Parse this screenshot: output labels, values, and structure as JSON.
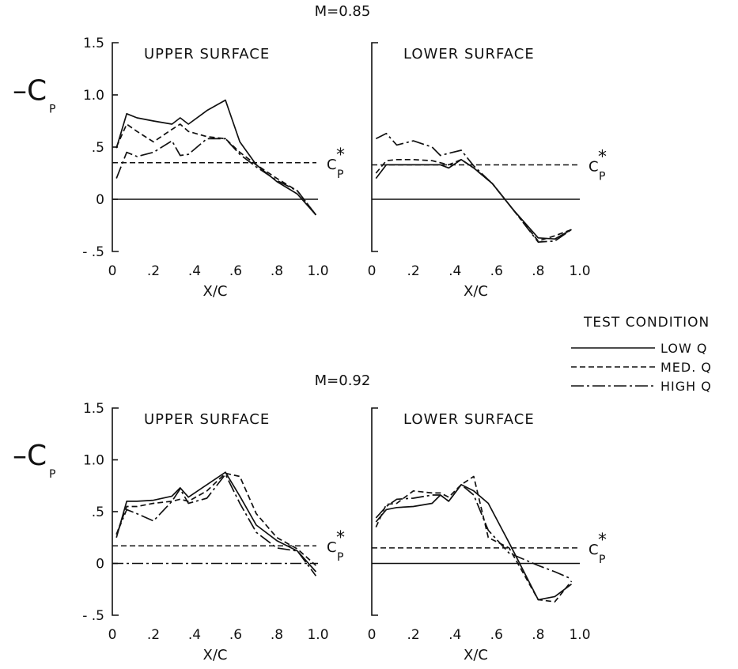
{
  "legend": {
    "title": "TEST CONDITION",
    "items": [
      {
        "label": "LOW  Q",
        "dash": ""
      },
      {
        "label": "MED.  Q",
        "dash": "7,4"
      },
      {
        "label": "HIGH  Q",
        "dash": "16,4,3,4"
      }
    ]
  },
  "labels": {
    "ylabel_main": "-C",
    "ylabel_sub": "P",
    "cpstar_main": "C",
    "cpstar_sub": "P",
    "cpstar_star": "*",
    "xlabel": "X/C"
  },
  "chart_data": [
    {
      "type": "line",
      "title": "M=0.85",
      "subtitle": "UPPER SURFACE",
      "xlabel": "X/C",
      "ylabel": "-C_P",
      "xlim": [
        0,
        1.0
      ],
      "ylim": [
        -0.5,
        1.5
      ],
      "xticks": [
        "0",
        ".2",
        ".4",
        ".6",
        ".8",
        "1.0"
      ],
      "yticks": [
        "1.5",
        "1.0",
        ".5",
        "0",
        "- .5"
      ],
      "cp_star": 0.35,
      "zero_line_style": "solid",
      "series": [
        {
          "name": "LOW Q",
          "x": [
            0.02,
            0.07,
            0.12,
            0.2,
            0.29,
            0.33,
            0.37,
            0.46,
            0.55,
            0.62,
            0.7,
            0.8,
            0.9,
            0.99
          ],
          "y": [
            0.49,
            0.82,
            0.78,
            0.75,
            0.72,
            0.78,
            0.72,
            0.85,
            0.95,
            0.55,
            0.33,
            0.17,
            0.05,
            -0.15
          ]
        },
        {
          "name": "MED. Q",
          "x": [
            0.02,
            0.07,
            0.12,
            0.2,
            0.29,
            0.33,
            0.37,
            0.46,
            0.55,
            0.62,
            0.7,
            0.8,
            0.9,
            0.99
          ],
          "y": [
            0.5,
            0.72,
            0.65,
            0.55,
            0.67,
            0.72,
            0.65,
            0.6,
            0.58,
            0.45,
            0.33,
            0.2,
            0.08,
            -0.15
          ]
        },
        {
          "name": "HIGH Q",
          "x": [
            0.02,
            0.07,
            0.12,
            0.2,
            0.29,
            0.33,
            0.37,
            0.46,
            0.55,
            0.62,
            0.7,
            0.8,
            0.9,
            0.99
          ],
          "y": [
            0.2,
            0.45,
            0.41,
            0.45,
            0.56,
            0.42,
            0.43,
            0.58,
            0.58,
            0.43,
            0.31,
            0.18,
            0.08,
            -0.15
          ]
        }
      ]
    },
    {
      "type": "line",
      "title": "",
      "subtitle": "LOWER SURFACE",
      "xlabel": "X/C",
      "ylabel": "",
      "xlim": [
        0,
        1.0
      ],
      "ylim": [
        -0.5,
        1.5
      ],
      "xticks": [
        "0",
        ".2",
        ".4",
        ".6",
        ".8",
        "1.0"
      ],
      "yticks": [],
      "cp_star": 0.33,
      "zero_line_style": "solid",
      "series": [
        {
          "name": "LOW Q",
          "x": [
            0.02,
            0.07,
            0.12,
            0.2,
            0.29,
            0.33,
            0.37,
            0.43,
            0.49,
            0.58,
            0.68,
            0.8,
            0.88,
            0.96
          ],
          "y": [
            0.2,
            0.33,
            0.33,
            0.33,
            0.33,
            0.33,
            0.3,
            0.38,
            0.3,
            0.15,
            -0.1,
            -0.37,
            -0.38,
            -0.29
          ]
        },
        {
          "name": "MED. Q",
          "x": [
            0.02,
            0.07,
            0.12,
            0.2,
            0.29,
            0.33,
            0.37,
            0.43,
            0.49,
            0.58,
            0.68,
            0.8,
            0.88,
            0.96
          ],
          "y": [
            0.25,
            0.37,
            0.38,
            0.38,
            0.37,
            0.35,
            0.33,
            0.38,
            0.3,
            0.15,
            -0.1,
            -0.4,
            -0.35,
            -0.29
          ]
        },
        {
          "name": "HIGH Q",
          "x": [
            0.02,
            0.07,
            0.12,
            0.2,
            0.29,
            0.33,
            0.37,
            0.43,
            0.49,
            0.58,
            0.68,
            0.8,
            0.88,
            0.96
          ],
          "y": [
            0.58,
            0.63,
            0.52,
            0.56,
            0.5,
            0.42,
            0.44,
            0.47,
            0.32,
            0.15,
            -0.1,
            -0.41,
            -0.4,
            -0.29
          ]
        }
      ]
    },
    {
      "type": "line",
      "title": "M=0.92",
      "subtitle": "UPPER SURFACE",
      "xlabel": "X/C",
      "ylabel": "-C_P",
      "xlim": [
        0,
        1.0
      ],
      "ylim": [
        -0.5,
        1.5
      ],
      "xticks": [
        "0",
        ".2",
        ".4",
        ".6",
        ".8",
        "1.0"
      ],
      "yticks": [
        "1.5",
        "1.0",
        ".5",
        "0",
        "- .5"
      ],
      "cp_star": 0.17,
      "zero_line_style": "dashdot",
      "series": [
        {
          "name": "LOW Q",
          "x": [
            0.02,
            0.07,
            0.12,
            0.2,
            0.29,
            0.33,
            0.37,
            0.46,
            0.55,
            0.62,
            0.7,
            0.8,
            0.9,
            0.99
          ],
          "y": [
            0.25,
            0.6,
            0.6,
            0.61,
            0.65,
            0.73,
            0.64,
            0.76,
            0.88,
            0.65,
            0.37,
            0.22,
            0.12,
            -0.08
          ]
        },
        {
          "name": "MED. Q",
          "x": [
            0.02,
            0.07,
            0.12,
            0.2,
            0.29,
            0.33,
            0.37,
            0.46,
            0.55,
            0.62,
            0.7,
            0.8,
            0.9,
            0.99
          ],
          "y": [
            0.28,
            0.55,
            0.55,
            0.58,
            0.6,
            0.62,
            0.6,
            0.7,
            0.87,
            0.84,
            0.48,
            0.25,
            0.14,
            -0.02
          ]
        },
        {
          "name": "HIGH Q",
          "x": [
            0.02,
            0.07,
            0.12,
            0.2,
            0.29,
            0.33,
            0.37,
            0.46,
            0.55,
            0.62,
            0.7,
            0.8,
            0.9,
            0.99
          ],
          "y": [
            0.28,
            0.52,
            0.48,
            0.41,
            0.6,
            0.72,
            0.58,
            0.63,
            0.86,
            0.58,
            0.3,
            0.15,
            0.12,
            -0.12
          ]
        }
      ]
    },
    {
      "type": "line",
      "title": "",
      "subtitle": "LOWER SURFACE",
      "xlabel": "X/C",
      "ylabel": "",
      "xlim": [
        0,
        1.0
      ],
      "ylim": [
        -0.5,
        1.5
      ],
      "xticks": [
        "0",
        ".2",
        ".4",
        ".6",
        ".8",
        "1.0"
      ],
      "yticks": [],
      "cp_star": 0.15,
      "zero_line_style": "solid",
      "series": [
        {
          "name": "LOW Q",
          "x": [
            0.02,
            0.07,
            0.12,
            0.2,
            0.29,
            0.33,
            0.37,
            0.43,
            0.49,
            0.56,
            0.66,
            0.8,
            0.88,
            0.96
          ],
          "y": [
            0.4,
            0.52,
            0.54,
            0.55,
            0.58,
            0.66,
            0.6,
            0.76,
            0.7,
            0.58,
            0.2,
            -0.35,
            -0.32,
            -0.2
          ]
        },
        {
          "name": "MED. Q",
          "x": [
            0.02,
            0.07,
            0.12,
            0.2,
            0.29,
            0.33,
            0.37,
            0.43,
            0.49,
            0.56,
            0.66,
            0.8,
            0.88,
            0.96
          ],
          "y": [
            0.35,
            0.57,
            0.58,
            0.7,
            0.68,
            0.68,
            0.64,
            0.76,
            0.84,
            0.25,
            0.15,
            -0.35,
            -0.37,
            -0.17
          ]
        },
        {
          "name": "HIGH Q",
          "x": [
            0.02,
            0.07,
            0.12,
            0.2,
            0.29,
            0.33,
            0.37,
            0.43,
            0.49,
            0.56,
            0.66,
            0.8,
            0.88,
            0.96
          ],
          "y": [
            0.44,
            0.55,
            0.62,
            0.63,
            0.66,
            0.66,
            0.6,
            0.76,
            0.66,
            0.32,
            0.1,
            -0.02,
            -0.08,
            -0.15
          ]
        }
      ]
    }
  ]
}
